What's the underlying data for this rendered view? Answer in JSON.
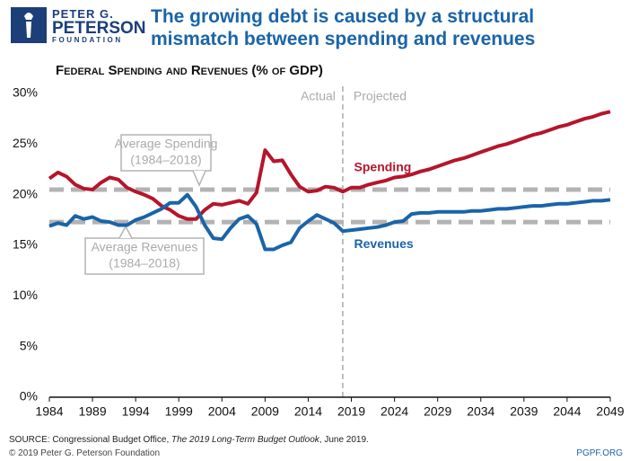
{
  "logo": [
    "PETER G.",
    "PETERSON",
    "FOUNDATION"
  ],
  "copyright": "© 2019 Peter G. Peterson Foundation",
  "website": "PGPF.ORG",
  "chart_data": {
    "type": "line",
    "title": "The growing debt is caused by a structural mismatch between spending and revenues",
    "subtitle": "Federal Spending and Revenues (% of GDP)",
    "source": [
      "SOURCE: Congressional Budget Office, ",
      "The 2019 Long-Term Budget Outlook",
      ", June 2019."
    ],
    "x": [
      1984,
      1985,
      1986,
      1987,
      1988,
      1989,
      1990,
      1991,
      1992,
      1993,
      1994,
      1995,
      1996,
      1997,
      1998,
      1999,
      2000,
      2001,
      2002,
      2003,
      2004,
      2005,
      2006,
      2007,
      2008,
      2009,
      2010,
      2011,
      2012,
      2013,
      2014,
      2015,
      2016,
      2017,
      2018,
      2019,
      2020,
      2021,
      2022,
      2023,
      2024,
      2025,
      2026,
      2027,
      2028,
      2029,
      2030,
      2031,
      2032,
      2033,
      2034,
      2035,
      2036,
      2037,
      2038,
      2039,
      2040,
      2041,
      2042,
      2043,
      2044,
      2045,
      2046,
      2047,
      2048,
      2049
    ],
    "series": [
      {
        "name": "Spending",
        "color": "#b5152b",
        "values": [
          21.6,
          22.2,
          21.8,
          21.0,
          20.6,
          20.5,
          21.2,
          21.7,
          21.5,
          20.7,
          20.3,
          20.0,
          19.6,
          18.9,
          18.5,
          17.9,
          17.6,
          17.6,
          18.5,
          19.1,
          19.0,
          19.2,
          19.4,
          19.1,
          20.2,
          24.4,
          23.3,
          23.4,
          22.0,
          20.8,
          20.3,
          20.4,
          20.8,
          20.7,
          20.3,
          20.7,
          20.7,
          21.0,
          21.2,
          21.4,
          21.7,
          21.8,
          22.0,
          22.3,
          22.5,
          22.8,
          23.1,
          23.4,
          23.6,
          23.9,
          24.2,
          24.5,
          24.8,
          25.0,
          25.3,
          25.6,
          25.9,
          26.1,
          26.4,
          26.7,
          26.9,
          27.2,
          27.5,
          27.7,
          28.0,
          28.2
        ]
      },
      {
        "name": "Revenues",
        "color": "#1a64a8",
        "values": [
          16.9,
          17.2,
          17.0,
          17.9,
          17.6,
          17.8,
          17.4,
          17.3,
          17.0,
          17.0,
          17.5,
          17.8,
          18.2,
          18.6,
          19.2,
          19.2,
          20.0,
          18.8,
          17.0,
          15.7,
          15.6,
          16.7,
          17.6,
          17.9,
          17.1,
          14.6,
          14.6,
          15.0,
          15.3,
          16.7,
          17.4,
          18.0,
          17.6,
          17.2,
          16.4,
          16.5,
          16.6,
          16.7,
          16.8,
          17.0,
          17.3,
          17.4,
          18.1,
          18.2,
          18.2,
          18.3,
          18.3,
          18.3,
          18.3,
          18.4,
          18.4,
          18.5,
          18.6,
          18.6,
          18.7,
          18.8,
          18.9,
          18.9,
          19.0,
          19.1,
          19.1,
          19.2,
          19.3,
          19.4,
          19.4,
          19.5
        ]
      }
    ],
    "reference_lines": [
      {
        "value": 20.5,
        "color": "#b3b3b3",
        "label": [
          "Average Spending",
          "(1984–2018)"
        ]
      },
      {
        "value": 17.3,
        "color": "#b3b3b3",
        "label": [
          "Average Revenues",
          "(1984–2018)"
        ]
      }
    ],
    "divider": {
      "x": 2018,
      "labels": [
        "Actual",
        "Projected"
      ]
    },
    "xlim": [
      1984,
      2049
    ],
    "xticks": [
      1984,
      1989,
      1994,
      1999,
      2004,
      2009,
      2014,
      2019,
      2024,
      2029,
      2034,
      2039,
      2044,
      2049
    ],
    "ylim": [
      0,
      30
    ],
    "yticks": [
      {
        "value": 0,
        "label": "0%"
      },
      {
        "value": 5,
        "label": "5%"
      },
      {
        "value": 10,
        "label": "10%"
      },
      {
        "value": 15,
        "label": "15%"
      },
      {
        "value": 20,
        "label": "20%"
      },
      {
        "value": 25,
        "label": "25%"
      },
      {
        "value": 30,
        "label": "30%"
      }
    ],
    "grid": false
  }
}
